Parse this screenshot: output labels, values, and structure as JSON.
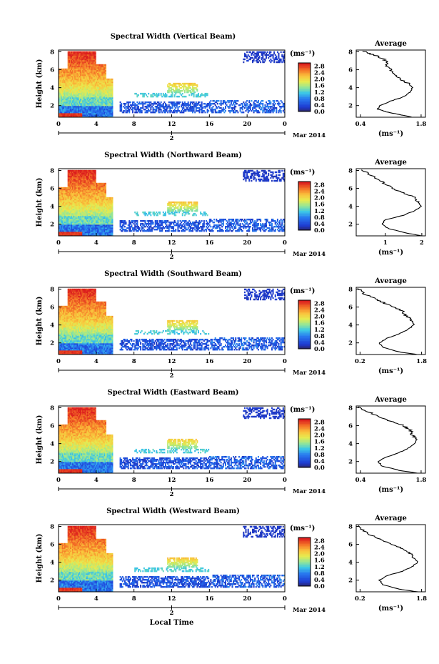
{
  "chart_data": [
    {
      "type": "heatmap",
      "title": "Spectral Width (Vertical Beam)",
      "ylabel": "Height (km)",
      "x_ticks": [
        "0",
        "4",
        "8",
        "12",
        "16",
        "20",
        "0"
      ],
      "y_ticks": [
        "2",
        "4",
        "6",
        "8"
      ],
      "xlim": [
        0,
        24
      ],
      "ylim": [
        0.7,
        8.2
      ],
      "date_tick": "2",
      "date_label": "Mar 2014",
      "colorbar": {
        "unit": "(ms⁻¹)",
        "ticks": [
          "0.0",
          "0.4",
          "0.8",
          "1.2",
          "1.6",
          "2.0",
          "2.4",
          "2.8"
        ],
        "range": [
          0,
          3.0
        ]
      },
      "average": {
        "title": "Average",
        "xlabel": "(ms⁻¹)",
        "x_ticks": [
          "0.4",
          "1.8"
        ],
        "xlim": [
          0.3,
          1.9
        ],
        "y_ticks": [
          "2",
          "4",
          "6",
          "8"
        ],
        "ylim": [
          0.7,
          8.2
        ],
        "profile": [
          [
            1.6,
            0.7
          ],
          [
            1.3,
            1.0
          ],
          [
            1.0,
            1.3
          ],
          [
            0.8,
            1.6
          ],
          [
            0.85,
            2.0
          ],
          [
            1.1,
            2.5
          ],
          [
            1.4,
            3.0
          ],
          [
            1.55,
            3.5
          ],
          [
            1.6,
            4.0
          ],
          [
            1.5,
            4.5
          ],
          [
            1.3,
            5.0
          ],
          [
            1.15,
            5.5
          ],
          [
            1.1,
            6.0
          ],
          [
            1.0,
            6.5
          ],
          [
            1.0,
            7.0
          ],
          [
            0.8,
            7.5
          ],
          [
            0.6,
            7.8
          ],
          [
            0.45,
            8.1
          ]
        ]
      },
      "series_note_colors": {
        "low": "#1e3cd2",
        "high": "#e8281e"
      }
    },
    {
      "type": "heatmap",
      "title": "Spectral Width (Northward Beam)",
      "ylabel": "Height (km)",
      "x_ticks": [
        "0",
        "4",
        "8",
        "12",
        "16",
        "20",
        "0"
      ],
      "y_ticks": [
        "2",
        "4",
        "6",
        "8"
      ],
      "xlim": [
        0,
        24
      ],
      "ylim": [
        0.7,
        8.2
      ],
      "date_tick": "2",
      "date_label": "Mar 2014",
      "colorbar": {
        "unit": "(ms⁻¹)",
        "ticks": [
          "0.0",
          "0.4",
          "0.8",
          "1.2",
          "1.6",
          "2.0",
          "2.4",
          "2.8"
        ],
        "range": [
          0,
          3.0
        ]
      },
      "average": {
        "title": "Average",
        "xlabel": "(ms⁻¹)",
        "x_ticks": [
          "1",
          "2"
        ],
        "xlim": [
          0.2,
          2.1
        ],
        "y_ticks": [
          "2",
          "4",
          "6",
          "8"
        ],
        "ylim": [
          0.7,
          8.2
        ],
        "profile": [
          [
            2.0,
            0.7
          ],
          [
            1.6,
            1.0
          ],
          [
            1.1,
            1.5
          ],
          [
            0.9,
            2.0
          ],
          [
            1.0,
            2.5
          ],
          [
            1.5,
            3.0
          ],
          [
            1.8,
            3.5
          ],
          [
            2.0,
            4.0
          ],
          [
            1.9,
            4.5
          ],
          [
            1.8,
            5.0
          ],
          [
            1.5,
            5.5
          ],
          [
            1.2,
            6.0
          ],
          [
            1.0,
            6.5
          ],
          [
            0.8,
            7.0
          ],
          [
            0.6,
            7.5
          ],
          [
            0.35,
            8.1
          ]
        ]
      },
      "series_note_colors": {
        "low": "#1e3cd2",
        "high": "#e8281e"
      }
    },
    {
      "type": "heatmap",
      "title": "Spectral Width (Southward Beam)",
      "ylabel": "Height (km)",
      "x_ticks": [
        "0",
        "4",
        "8",
        "12",
        "16",
        "20",
        "0"
      ],
      "y_ticks": [
        "2",
        "4",
        "6",
        "8"
      ],
      "xlim": [
        0,
        24
      ],
      "ylim": [
        0.7,
        8.2
      ],
      "date_tick": "2",
      "date_label": "Mar 2014",
      "colorbar": {
        "unit": "(ms⁻¹)",
        "ticks": [
          "0.0",
          "0.4",
          "0.8",
          "1.2",
          "1.6",
          "2.0",
          "2.4",
          "2.8"
        ],
        "range": [
          0,
          3.0
        ]
      },
      "average": {
        "title": "Average",
        "xlabel": "(ms⁻¹)",
        "x_ticks": [
          "0.2",
          "1.8"
        ],
        "xlim": [
          0.1,
          1.9
        ],
        "y_ticks": [
          "2",
          "4",
          "6",
          "8"
        ],
        "ylim": [
          0.7,
          8.2
        ],
        "profile": [
          [
            1.7,
            0.7
          ],
          [
            1.2,
            1.0
          ],
          [
            0.8,
            1.5
          ],
          [
            0.7,
            2.0
          ],
          [
            0.9,
            2.5
          ],
          [
            1.2,
            3.0
          ],
          [
            1.45,
            3.5
          ],
          [
            1.6,
            4.0
          ],
          [
            1.55,
            4.5
          ],
          [
            1.4,
            5.0
          ],
          [
            1.3,
            5.5
          ],
          [
            1.1,
            6.0
          ],
          [
            0.8,
            6.5
          ],
          [
            0.55,
            7.0
          ],
          [
            0.3,
            7.5
          ],
          [
            0.15,
            8.1
          ]
        ]
      },
      "series_note_colors": {
        "low": "#1e3cd2",
        "high": "#e8281e"
      }
    },
    {
      "type": "heatmap",
      "title": "Spectral Width (Eastward Beam)",
      "ylabel": "Height (km)",
      "x_ticks": [
        "0",
        "4",
        "8",
        "12",
        "16",
        "20",
        "0"
      ],
      "y_ticks": [
        "2",
        "4",
        "6",
        "8"
      ],
      "xlim": [
        0,
        24
      ],
      "ylim": [
        0.7,
        8.2
      ],
      "date_tick": "2",
      "date_label": "Mar 2014",
      "colorbar": {
        "unit": "(ms⁻¹)",
        "ticks": [
          "0.0",
          "0.4",
          "0.8",
          "1.2",
          "1.6",
          "2.0",
          "2.4",
          "2.8"
        ],
        "range": [
          0,
          3.0
        ]
      },
      "average": {
        "title": "Average",
        "xlabel": "(ms⁻¹)",
        "x_ticks": [
          "0.4",
          "1.8"
        ],
        "xlim": [
          0.3,
          1.9
        ],
        "y_ticks": [
          "2",
          "4",
          "6",
          "8"
        ],
        "ylim": [
          0.7,
          8.2
        ],
        "profile": [
          [
            1.7,
            0.7
          ],
          [
            1.3,
            1.0
          ],
          [
            0.9,
            1.5
          ],
          [
            0.8,
            2.0
          ],
          [
            1.0,
            2.5
          ],
          [
            1.3,
            3.0
          ],
          [
            1.5,
            3.5
          ],
          [
            1.65,
            4.0
          ],
          [
            1.7,
            4.5
          ],
          [
            1.6,
            5.0
          ],
          [
            1.55,
            5.5
          ],
          [
            1.4,
            6.0
          ],
          [
            1.1,
            6.5
          ],
          [
            0.85,
            7.0
          ],
          [
            0.6,
            7.5
          ],
          [
            0.35,
            8.1
          ]
        ]
      },
      "series_note_colors": {
        "low": "#1e3cd2",
        "high": "#e8281e"
      }
    },
    {
      "type": "heatmap",
      "title": "Spectral Width (Westward Beam)",
      "ylabel": "Height (km)",
      "x_ticks": [
        "0",
        "4",
        "8",
        "12",
        "16",
        "20",
        "0"
      ],
      "y_ticks": [
        "2",
        "4",
        "6",
        "8"
      ],
      "xlim": [
        0,
        24
      ],
      "ylim": [
        0.7,
        8.2
      ],
      "date_tick": "2",
      "date_label": "Mar 2014",
      "xlabel": "Local Time",
      "colorbar": {
        "unit": "(ms⁻¹)",
        "ticks": [
          "0.0",
          "0.4",
          "0.8",
          "1.2",
          "1.6",
          "2.0",
          "2.4",
          "2.8"
        ],
        "range": [
          0,
          3.0
        ]
      },
      "average": {
        "title": "Average",
        "xlabel": "(ms⁻¹)",
        "x_ticks": [
          "0.2",
          "1.8"
        ],
        "xlim": [
          0.1,
          1.9
        ],
        "y_ticks": [
          "2",
          "4",
          "6",
          "8"
        ],
        "ylim": [
          0.7,
          8.2
        ],
        "profile": [
          [
            1.7,
            0.7
          ],
          [
            1.2,
            1.0
          ],
          [
            0.8,
            1.5
          ],
          [
            0.7,
            2.0
          ],
          [
            0.9,
            2.5
          ],
          [
            1.3,
            3.0
          ],
          [
            1.55,
            3.5
          ],
          [
            1.7,
            4.0
          ],
          [
            1.6,
            4.5
          ],
          [
            1.5,
            5.0
          ],
          [
            1.3,
            5.5
          ],
          [
            1.05,
            6.0
          ],
          [
            0.75,
            6.5
          ],
          [
            0.5,
            7.0
          ],
          [
            0.3,
            7.5
          ],
          [
            0.15,
            8.1
          ]
        ]
      },
      "series_note_colors": {
        "low": "#1e3cd2",
        "high": "#e8281e"
      }
    }
  ]
}
